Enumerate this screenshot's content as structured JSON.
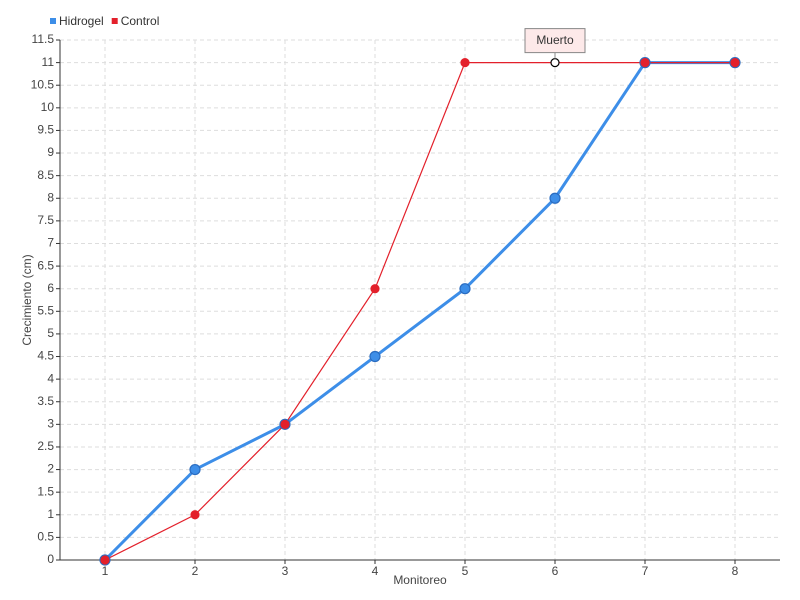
{
  "chart_data": {
    "type": "line",
    "x": [
      1,
      2,
      3,
      4,
      5,
      6,
      7,
      8
    ],
    "series": [
      {
        "name": "Hidrogel",
        "color": "#3d8ee8",
        "values": [
          0,
          2,
          3,
          4.5,
          6,
          8,
          11,
          11
        ]
      },
      {
        "name": "Control",
        "color": "#e3202b",
        "values": [
          0,
          1,
          3,
          6,
          11,
          11,
          11,
          11
        ]
      }
    ],
    "xlim": [
      0.5,
      8.5
    ],
    "xticks": [
      1,
      2,
      3,
      4,
      5,
      6,
      7,
      8
    ],
    "ylim": [
      0,
      11.5
    ],
    "yticks": [
      0,
      0.5,
      1,
      1.5,
      2,
      2.5,
      3,
      3.5,
      4,
      4.5,
      5,
      5.5,
      6,
      6.5,
      7,
      7.5,
      8,
      8.5,
      9,
      9.5,
      10,
      10.5,
      11,
      11.5
    ],
    "xlabel": "Monitoreo",
    "ylabel": "Crecimiento (cm)",
    "grid": true,
    "legend": "top-left",
    "annotations": [
      {
        "text": "Muerto",
        "series": 1,
        "index": 5
      }
    ]
  }
}
